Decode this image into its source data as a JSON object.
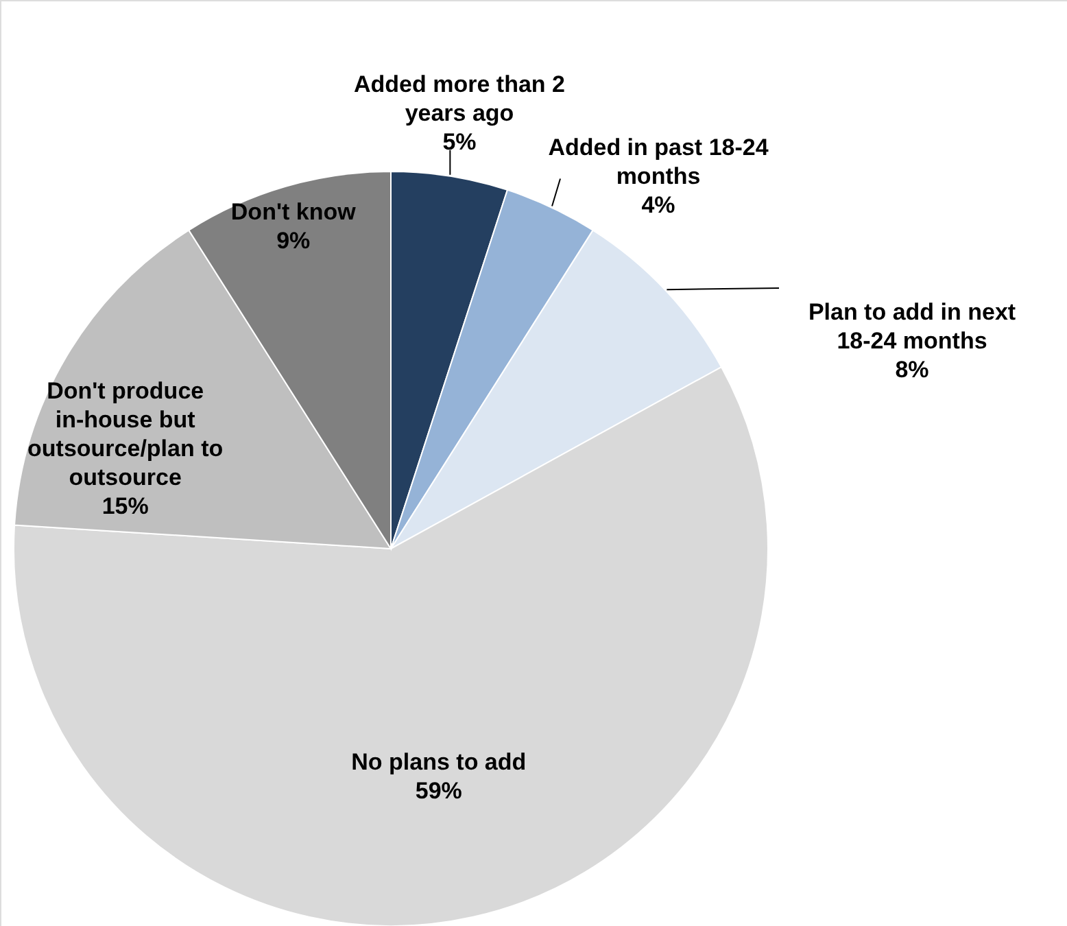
{
  "chart_data": {
    "type": "pie",
    "categories": [
      "Added more than 2 years ago",
      "Added in past 18-24 months",
      "Plan to add in next 18-24 months",
      "No plans to add",
      "Don't produce in-house but outsource/plan to outsource",
      "Don't know"
    ],
    "values": [
      5,
      4,
      8,
      59,
      15,
      9
    ],
    "colors": [
      "#243f60",
      "#95b3d7",
      "#dce6f2",
      "#d9d9d9",
      "#bfbfbf",
      "#808080"
    ],
    "value_labels": [
      "5%",
      "4%",
      "8%",
      "59%",
      "15%",
      "9%"
    ]
  }
}
